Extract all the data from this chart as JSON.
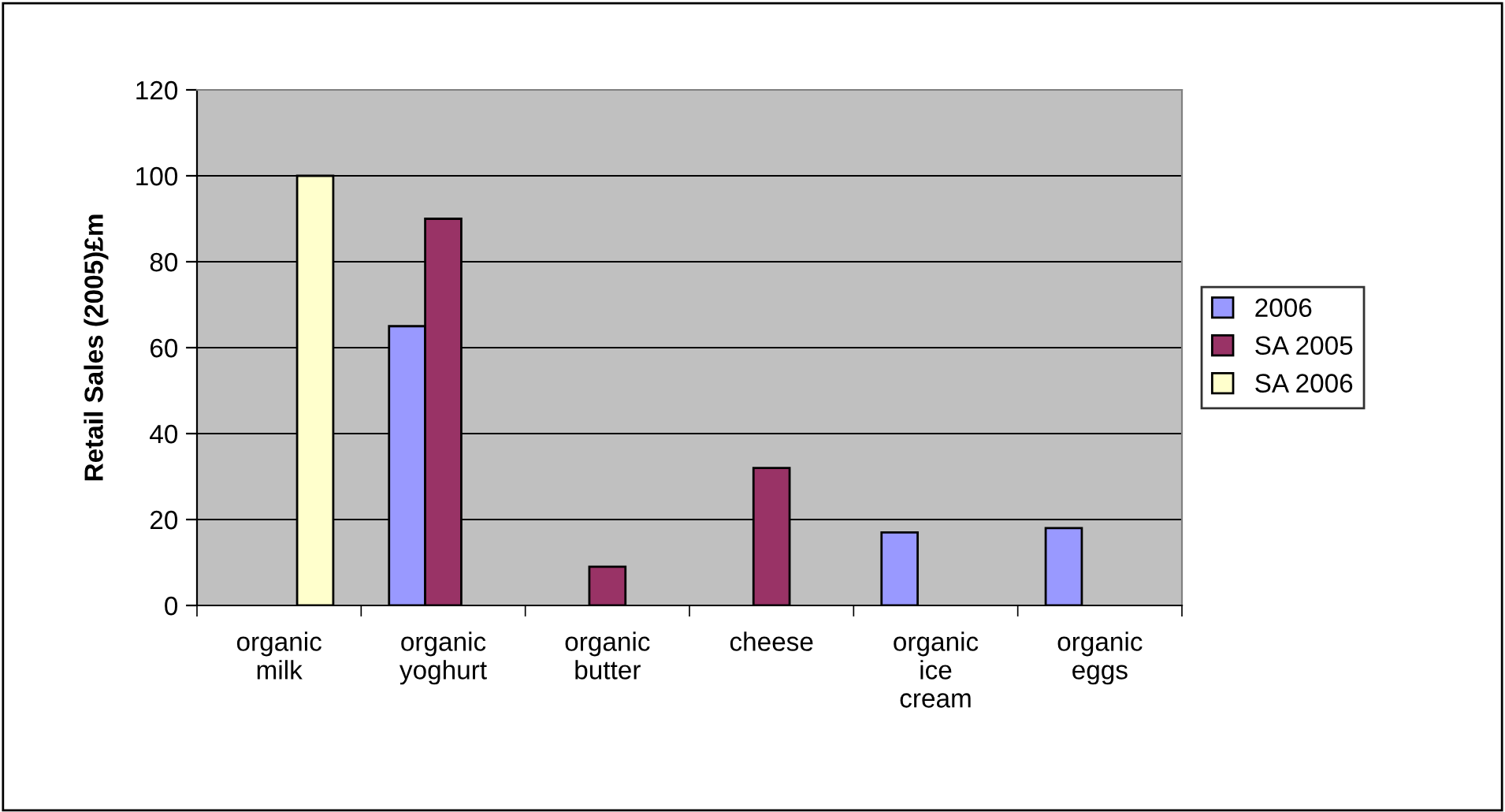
{
  "chart_data": {
    "type": "bar",
    "ylabel": "Retail Sales (2005)£m",
    "categories": [
      "organic\nmilk",
      "organic\nyoghurt",
      "organic\nbutter",
      "cheese",
      "organic\nice\ncream",
      "organic\neggs"
    ],
    "series": [
      {
        "name": "2006",
        "color": "#9999ff",
        "values": [
          null,
          65,
          null,
          null,
          17,
          18
        ]
      },
      {
        "name": "SA 2005",
        "color": "#993366",
        "values": [
          null,
          90,
          9,
          32,
          null,
          null
        ]
      },
      {
        "name": "SA 2006",
        "color": "#ffffcc",
        "values": [
          100,
          null,
          null,
          null,
          null,
          null
        ]
      }
    ],
    "ylim": [
      0,
      120
    ],
    "yticks": [
      0,
      20,
      40,
      60,
      80,
      100,
      120
    ],
    "grid": "y",
    "legend": "right"
  }
}
